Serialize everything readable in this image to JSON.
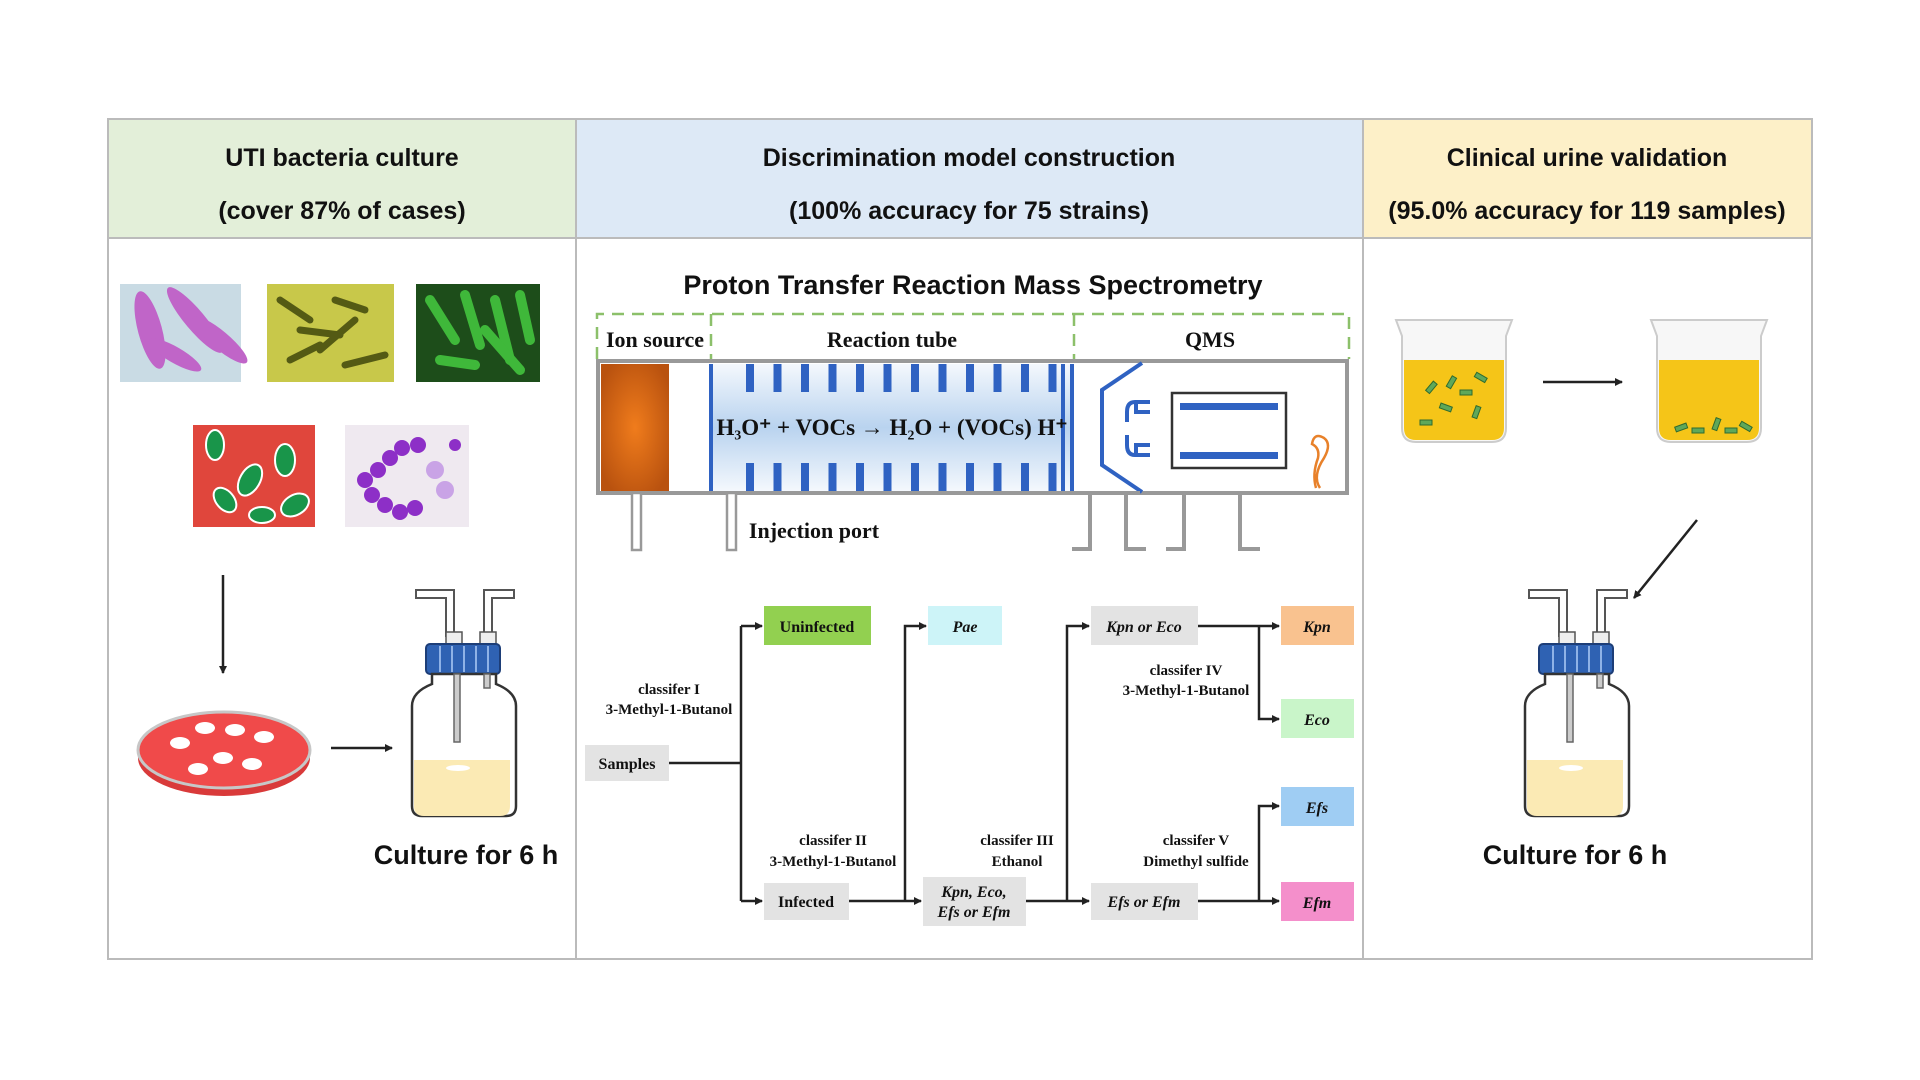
{
  "panels": [
    {
      "title": "UTI bacteria culture",
      "subtitle": "(cover 87% of cases)",
      "color": "#e3efd9"
    },
    {
      "title": "Discrimination model construction",
      "subtitle": "(100% accuracy for 75 strains)",
      "color": "#dde9f6"
    },
    {
      "title": "Clinical urine validation",
      "subtitle": "(95.0% accuracy for 119 samples)",
      "color": "#fdf0c8"
    }
  ],
  "left": {
    "culture_label": "Culture for 6 h"
  },
  "right": {
    "culture_label": "Culture for 6 h"
  },
  "ptr": {
    "title": "Proton Transfer Reaction Mass Spectrometry",
    "ion_source": "Ion source",
    "reaction_tube": "Reaction tube",
    "qms": "QMS",
    "equation": "H₃O⁺ + VOCs → H₂O + (VOCs) H⁺",
    "injection_port": "Injection port"
  },
  "flow": {
    "samples": "Samples",
    "uninfected": "Uninfected",
    "infected": "Infected",
    "pae": "Pae",
    "kpn_eco_efs_efm_1": "Kpn, Eco,",
    "kpn_eco_efs_efm_2": "Efs or Efm",
    "kpn_or_eco": "Kpn or Eco",
    "efs_or_efm": "Efs or Efm",
    "kpn": "Kpn",
    "eco": "Eco",
    "efs": "Efs",
    "efm": "Efm",
    "classifiers": [
      {
        "name": "classifer I",
        "compound": "3-Methyl-1-Butanol"
      },
      {
        "name": "classifer II",
        "compound": "3-Methyl-1-Butanol"
      },
      {
        "name": "classifer III",
        "compound": "Ethanol"
      },
      {
        "name": "classifer IV",
        "compound": "3-Methyl-1-Butanol"
      },
      {
        "name": "classifer V",
        "compound": "Dimethyl sulfide"
      }
    ],
    "colors": {
      "uninfected": "#92d050",
      "pae": "#cdf4f8",
      "kpn": "#f9c28f",
      "eco": "#c9f5c9",
      "efs": "#9fcdf3",
      "efm": "#f48fcb",
      "neutral": "#e3e3e3"
    }
  }
}
